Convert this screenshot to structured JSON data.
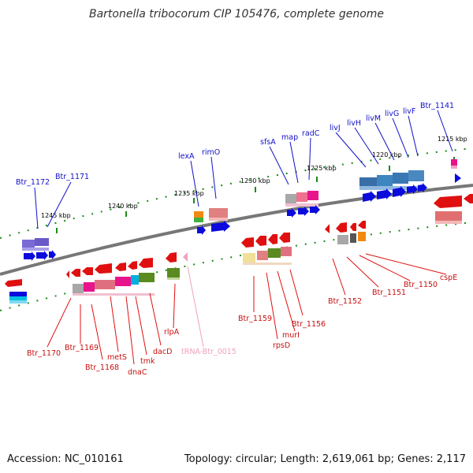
{
  "title": "Bartonella tribocorum CIP 105476, complete genome",
  "footer": {
    "accession": "Accession: NC_010161",
    "topology": "Topology: circular; Length: 2,619,061 bp; Genes: 2,117"
  },
  "scale_labels": [
    "1245 kbp",
    "1240 kbp",
    "1235 kbp",
    "1230 kbp",
    "1225 kbp",
    "1220 kbp",
    "1215 kbp"
  ],
  "forward_genes": [
    "Btr_1172",
    "Btr_1171",
    "lexA",
    "rimO",
    "sfsA",
    "map",
    "radC",
    "livJ",
    "livH",
    "livM",
    "livG",
    "livF",
    "Btr_1141"
  ],
  "reverse_genes": [
    "Btr_1170",
    "Btr_1169",
    "Btr_1168",
    "metS",
    "dnaC",
    "tmk",
    "dacD",
    "rlpA",
    "tRNA-Btr_0015",
    "Btr_1159",
    "rpsD",
    "murI",
    "Btr_1156",
    "Btr_1152",
    "Btr_1151",
    "Btr_1150",
    "cspE"
  ],
  "colors": {
    "backbone": "#777777",
    "forward_label": "#1010c8",
    "reverse_label": "#c81010",
    "trna_label": "#f0a0c0",
    "tick": "#1a8a1a",
    "gene_forward": "#0b0bdc",
    "gene_reverse": "#e01010"
  }
}
